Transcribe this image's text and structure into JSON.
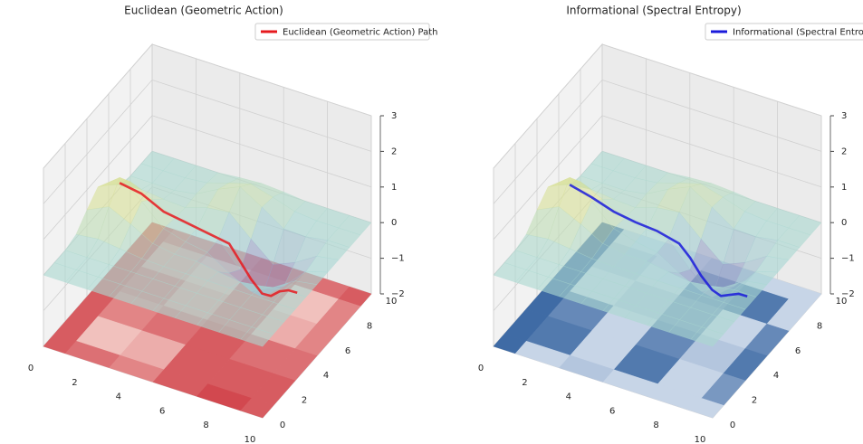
{
  "chart_data": [
    {
      "type": "surface3d",
      "title": "Euclidean (Geometric Action)",
      "xlim": [
        0,
        10
      ],
      "ylim": [
        0,
        10
      ],
      "zlim": [
        -2,
        3
      ],
      "xticks": [
        0,
        2,
        4,
        6,
        8,
        10
      ],
      "yticks": [
        0,
        2,
        4,
        6,
        8,
        10
      ],
      "zticks": [
        {
          "value": -2,
          "label": "−2"
        },
        {
          "value": -1,
          "label": "−1"
        },
        0,
        1,
        2,
        3
      ],
      "legend": "upper right",
      "grid": true,
      "surface": {
        "x": [
          0,
          1,
          2,
          3,
          4,
          5,
          6,
          7,
          8,
          9,
          10
        ],
        "y": [
          0,
          1,
          2,
          3,
          4,
          5,
          6,
          7,
          8,
          9,
          10
        ],
        "z": [
          [
            0,
            0,
            0,
            0,
            0,
            0,
            0,
            0,
            0,
            0,
            0
          ],
          [
            0,
            0,
            0,
            0,
            0,
            0,
            0,
            0,
            0,
            0,
            0
          ],
          [
            0,
            0,
            0,
            0,
            0,
            0,
            0,
            0,
            0,
            0,
            0
          ],
          [
            0.1,
            0.17,
            0.1,
            0.02,
            0,
            0,
            0,
            0,
            0,
            0,
            0
          ],
          [
            0.44,
            0.73,
            0.44,
            0.1,
            0,
            0,
            -0.1,
            -0.18,
            -0.1,
            0,
            0
          ],
          [
            0.73,
            1.2,
            0.73,
            0.17,
            0,
            -0.1,
            -0.48,
            -0.79,
            -0.48,
            -0.1,
            0
          ],
          [
            0.44,
            0.73,
            0.44,
            0.1,
            0,
            -0.08,
            -0.73,
            -1.3,
            -0.79,
            -0.18,
            0
          ],
          [
            0.1,
            0.17,
            0.1,
            0.06,
            0.26,
            0.33,
            -0.22,
            -0.73,
            -0.48,
            -0.1,
            0
          ],
          [
            0,
            0,
            0,
            0.1,
            0.43,
            0.7,
            0.33,
            -0.08,
            -0.1,
            0,
            0
          ],
          [
            0,
            0,
            0,
            0.06,
            0.26,
            0.43,
            0.26,
            0.06,
            0,
            0,
            0
          ],
          [
            0,
            0,
            0,
            0,
            0.06,
            0.1,
            0.06,
            0,
            0,
            0,
            0
          ]
        ],
        "colors": [
          "#8e7fbf",
          "#a8d8d4",
          "#f0e67a"
        ]
      },
      "floor": {
        "x": [
          0,
          2,
          4,
          6,
          8,
          10
        ],
        "y": [
          0,
          2,
          4,
          6,
          8,
          10
        ],
        "values": [
          [
            0.7,
            0.6,
            0.5,
            0.7,
            0.8,
            0.7
          ],
          [
            0.7,
            0.2,
            0.3,
            0.7,
            0.7,
            0.7
          ],
          [
            0.7,
            0.5,
            0.6,
            0.7,
            0.6,
            0.6
          ],
          [
            0.7,
            0.6,
            0.4,
            0.6,
            0.3,
            0.5
          ],
          [
            0.7,
            0.4,
            0.3,
            0.6,
            0.2,
            0.5
          ],
          [
            0.7,
            0.6,
            0.6,
            0.7,
            0.6,
            0.7
          ]
        ],
        "colors": [
          "#fbe9e2",
          "#c8202a"
        ]
      },
      "series": [
        {
          "name": "Euclidean (Geometric Action) Path",
          "color": "#e6191e",
          "x": [
            0.5,
            1.5,
            2.5,
            3.5,
            4.5,
            5.5,
            6,
            6.5,
            7,
            7.5,
            8,
            8.5,
            9
          ],
          "y": [
            6,
            6,
            6,
            6,
            6,
            6,
            6,
            6,
            6,
            5.8,
            5.6,
            5.4,
            5.2
          ],
          "z": [
            0.6,
            0.5,
            0.2,
            0.1,
            0,
            -0.1,
            -0.5,
            -0.9,
            -1.2,
            -1.1,
            -0.8,
            -0.6,
            -0.5
          ]
        }
      ]
    },
    {
      "type": "surface3d",
      "title": "Informational (Spectral Entropy)",
      "xlim": [
        0,
        10
      ],
      "ylim": [
        0,
        10
      ],
      "zlim": [
        -2,
        3
      ],
      "xticks": [
        0,
        2,
        4,
        6,
        8,
        10
      ],
      "yticks": [
        0,
        2,
        4,
        6,
        8,
        10
      ],
      "zticks": [
        {
          "value": -2,
          "label": "−2"
        },
        {
          "value": -1,
          "label": "−1"
        },
        0,
        1,
        2,
        3
      ],
      "legend": "upper right",
      "grid": true,
      "surface": {
        "x": [
          0,
          1,
          2,
          3,
          4,
          5,
          6,
          7,
          8,
          9,
          10
        ],
        "y": [
          0,
          1,
          2,
          3,
          4,
          5,
          6,
          7,
          8,
          9,
          10
        ],
        "z": [
          [
            0,
            0,
            0,
            0,
            0,
            0,
            0,
            0,
            0,
            0,
            0
          ],
          [
            0,
            0,
            0,
            0,
            0,
            0,
            0,
            0,
            0,
            0,
            0
          ],
          [
            0,
            0,
            0,
            0,
            0,
            0,
            0,
            0,
            0,
            0,
            0
          ],
          [
            0.1,
            0.17,
            0.1,
            0.02,
            0,
            0,
            0,
            0,
            0,
            0,
            0
          ],
          [
            0.44,
            0.73,
            0.44,
            0.1,
            0,
            0,
            -0.1,
            -0.18,
            -0.1,
            0,
            0
          ],
          [
            0.73,
            1.2,
            0.73,
            0.17,
            0,
            -0.1,
            -0.48,
            -0.79,
            -0.48,
            -0.1,
            0
          ],
          [
            0.44,
            0.73,
            0.44,
            0.1,
            0,
            -0.08,
            -0.73,
            -1.3,
            -0.79,
            -0.18,
            0
          ],
          [
            0.1,
            0.17,
            0.1,
            0.06,
            0.26,
            0.33,
            -0.22,
            -0.73,
            -0.48,
            -0.1,
            0
          ],
          [
            0,
            0,
            0,
            0.1,
            0.43,
            0.7,
            0.33,
            -0.08,
            -0.1,
            0,
            0
          ],
          [
            0,
            0,
            0,
            0.06,
            0.26,
            0.43,
            0.26,
            0.06,
            0,
            0,
            0
          ],
          [
            0,
            0,
            0,
            0,
            0.06,
            0.1,
            0.06,
            0,
            0,
            0,
            0
          ]
        ],
        "colors": [
          "#8e7fbf",
          "#a8d8d4",
          "#f0e67a"
        ]
      },
      "floor": {
        "x": [
          0,
          2,
          4,
          6,
          8,
          10
        ],
        "y": [
          0,
          2,
          4,
          6,
          8,
          10
        ],
        "values": [
          [
            0.9,
            0.2,
            0.3,
            0.2,
            0.2,
            0.2
          ],
          [
            0.9,
            0.8,
            0.2,
            0.8,
            0.2,
            0.6
          ],
          [
            0.9,
            0.7,
            0.2,
            0.7,
            0.3,
            0.8
          ],
          [
            0.9,
            0.2,
            0.3,
            0.6,
            0.2,
            0.7
          ],
          [
            0.9,
            0.3,
            0.2,
            0.7,
            0.8,
            0.2
          ],
          [
            0.9,
            0.2,
            0.2,
            0.3,
            0.2,
            0.2
          ]
        ],
        "colors": [
          "#eef3fa",
          "#2b5c9b"
        ]
      },
      "series": [
        {
          "name": "Informational (Spectral Entropy) Path",
          "color": "#1a1adb",
          "x": [
            0.5,
            1.5,
            2.5,
            3.5,
            4.5,
            5.5,
            6,
            6.5,
            7,
            7.5,
            8,
            8.5,
            9
          ],
          "y": [
            6,
            6,
            6,
            6,
            6,
            6,
            6,
            6,
            6,
            5.8,
            5.6,
            5.4,
            5.2
          ],
          "z": [
            0.55,
            0.4,
            0.2,
            0.1,
            0.05,
            -0.1,
            -0.4,
            -0.8,
            -1.1,
            -1.1,
            -0.9,
            -0.7,
            -0.6
          ]
        }
      ]
    }
  ]
}
